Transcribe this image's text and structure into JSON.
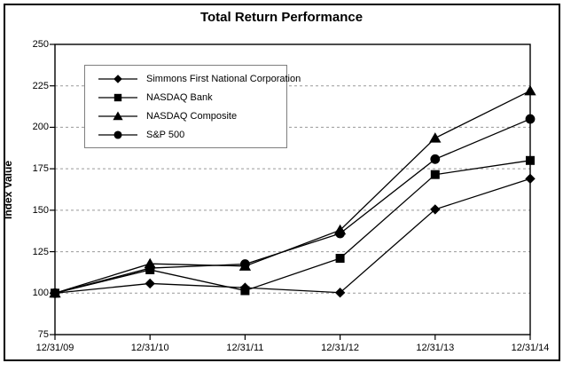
{
  "chart_data": {
    "type": "line",
    "title": "Total Return Performance",
    "ylabel": "Index Value",
    "xlabel": "",
    "ylim": [
      75,
      250
    ],
    "yticks": [
      250,
      225,
      200,
      175,
      150,
      125,
      100,
      75
    ],
    "grid_values": [
      225,
      200,
      175,
      150,
      125,
      100
    ],
    "grid_on": true,
    "legend_position": "top-left-inside",
    "categories": [
      "12/31/09",
      "12/31/10",
      "12/31/11",
      "12/31/12",
      "12/31/13",
      "12/31/14"
    ],
    "series": [
      {
        "name": "Simmons First National Corporation",
        "marker": "diamond",
        "values": [
          100.0,
          105.8,
          103.3,
          100.3,
          150.5,
          169.0
        ]
      },
      {
        "name": "NASDAQ Bank",
        "marker": "square",
        "values": [
          100.0,
          114.1,
          101.5,
          121.0,
          171.5,
          180.0
        ]
      },
      {
        "name": "NASDAQ Composite",
        "marker": "triangle",
        "values": [
          100.0,
          117.7,
          116.3,
          138.0,
          193.5,
          222.0
        ]
      },
      {
        "name": "S&P 500",
        "marker": "circle",
        "values": [
          100.0,
          115.1,
          117.5,
          136.0,
          180.8,
          205.0
        ]
      }
    ],
    "colors": {
      "line": "#000000",
      "marker_fill": "#000000",
      "grid": "#999999",
      "axis": "#000000",
      "legend_border": "#7f7f7f",
      "background": "#ffffff"
    }
  }
}
